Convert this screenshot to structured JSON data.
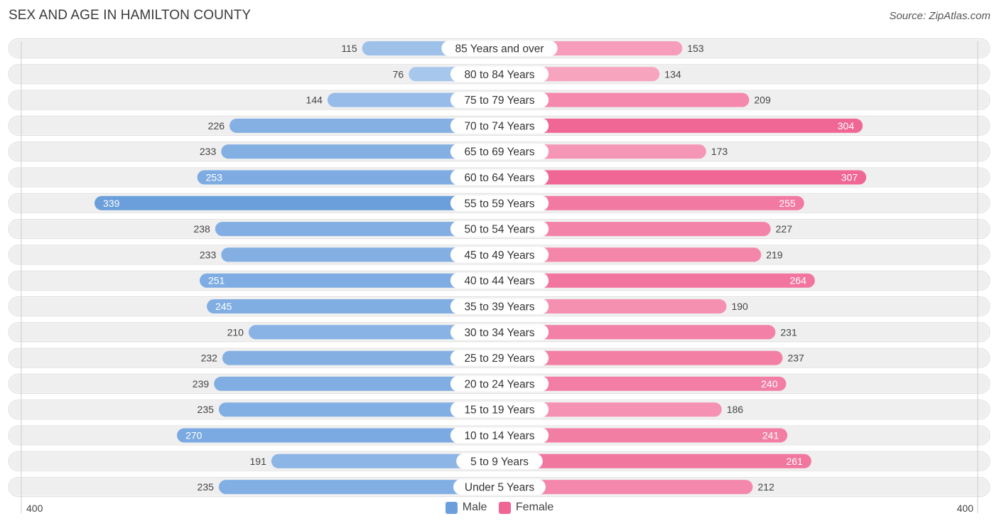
{
  "title": "SEX AND AGE IN HAMILTON COUNTY",
  "source": "Source: ZipAtlas.com",
  "colors": {
    "male_strong": "#6a9fdc",
    "male_light": "#abc9ee",
    "female_strong": "#f06593",
    "female_light": "#f8a9c3",
    "row_bg": "#efefef"
  },
  "chart_data": {
    "type": "bar",
    "orientation": "horizontal-diverging",
    "title": "SEX AND AGE IN HAMILTON COUNTY",
    "axis_max": 400,
    "axis_left_label": "400",
    "axis_right_label": "400",
    "legend": [
      "Male",
      "Female"
    ],
    "legend_position": "bottom-center",
    "categories": [
      "85 Years and over",
      "80 to 84 Years",
      "75 to 79 Years",
      "70 to 74 Years",
      "65 to 69 Years",
      "60 to 64 Years",
      "55 to 59 Years",
      "50 to 54 Years",
      "45 to 49 Years",
      "40 to 44 Years",
      "35 to 39 Years",
      "30 to 34 Years",
      "25 to 29 Years",
      "20 to 24 Years",
      "15 to 19 Years",
      "10 to 14 Years",
      "5 to 9 Years",
      "Under 5 Years"
    ],
    "series": [
      {
        "name": "Male",
        "values": [
          115,
          76,
          144,
          226,
          233,
          253,
          339,
          238,
          233,
          251,
          245,
          210,
          232,
          239,
          235,
          270,
          191,
          235
        ]
      },
      {
        "name": "Female",
        "values": [
          153,
          134,
          209,
          304,
          173,
          307,
          255,
          227,
          219,
          264,
          190,
          231,
          237,
          240,
          186,
          241,
          261,
          212
        ]
      }
    ]
  }
}
